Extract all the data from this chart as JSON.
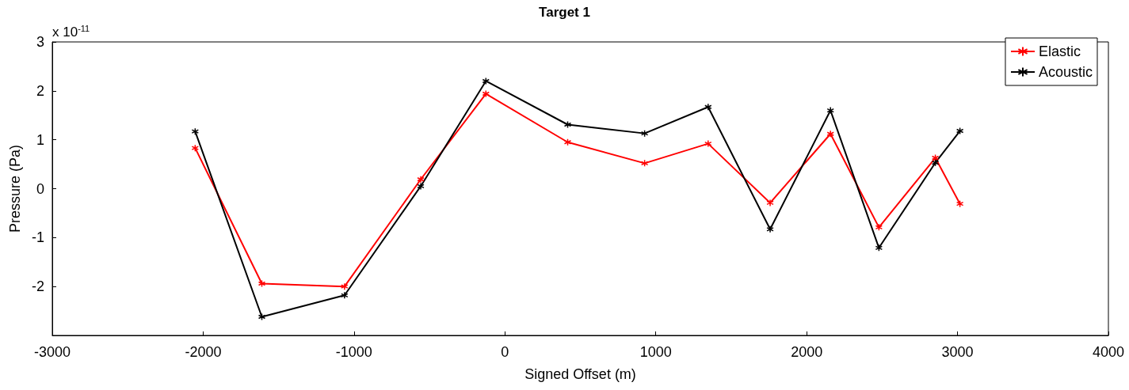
{
  "chart_data": {
    "type": "line",
    "title": "Target 1",
    "xlabel": "Signed Offset (m)",
    "ylabel": "Pressure (Pa)",
    "annotations": [
      "x 10$^{-11}$"
    ],
    "x": [
      -2053,
      -1611,
      -1063,
      -558,
      -126,
      416,
      926,
      1347,
      1758,
      2158,
      2479,
      2853,
      3016
    ],
    "series": [
      {
        "name": "Elastic",
        "color": "#ff0000",
        "values": [
          0.83,
          -1.94,
          -2.0,
          0.19,
          1.94,
          0.95,
          0.52,
          0.92,
          -0.29,
          1.12,
          -0.79,
          0.63,
          -0.31
        ]
      },
      {
        "name": "Acoustic",
        "color": "#000000",
        "values": [
          1.17,
          -2.62,
          -2.18,
          0.05,
          2.2,
          1.31,
          1.13,
          1.67,
          -0.83,
          1.6,
          -1.21,
          0.53,
          1.18
        ]
      }
    ],
    "xlim": [
      -3000,
      4000
    ],
    "xticks": [
      -3000,
      -2000,
      -1000,
      0,
      1000,
      2000,
      3000,
      4000
    ],
    "ylim": [
      -3,
      3
    ],
    "yticks": [
      {
        "value": -3,
        "label": null
      },
      -2,
      -1,
      0,
      1,
      2,
      3
    ],
    "grid": false,
    "legend": "top right",
    "marker": "cross",
    "line_style": "solid"
  }
}
